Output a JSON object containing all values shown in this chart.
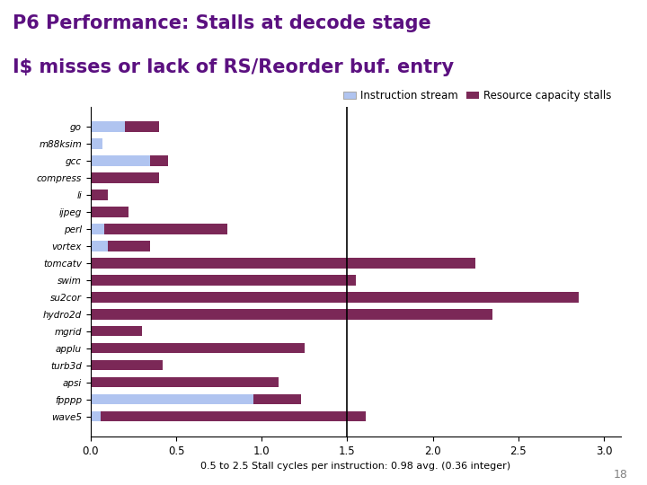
{
  "title_line1": "P6 Performance: Stalls at decode stage",
  "title_line2": "I$ misses or lack of RS/Reorder buf. entry",
  "categories": [
    "go",
    "m88ksim",
    "gcc",
    "compress",
    "li",
    "ijpeg",
    "perl",
    "vortex",
    "tomcatv",
    "swim",
    "su2cor",
    "hydro2d",
    "mgrid",
    "applu",
    "turb3d",
    "apsi",
    "fpppp",
    "wave5"
  ],
  "instruction_stream": [
    0.2,
    0.07,
    0.35,
    0.0,
    0.0,
    0.0,
    0.08,
    0.1,
    0.0,
    0.0,
    0.0,
    0.0,
    0.0,
    0.0,
    0.0,
    0.0,
    0.95,
    0.06
  ],
  "resource_capacity": [
    0.2,
    0.0,
    0.1,
    0.4,
    0.1,
    0.22,
    0.72,
    0.25,
    2.25,
    1.55,
    2.85,
    2.35,
    0.3,
    1.25,
    0.42,
    1.1,
    0.28,
    1.55
  ],
  "color_instruction": "#b0c4f0",
  "color_resource": "#7b2857",
  "xlabel": "0.5 to 2.5 Stall cycles per instruction: 0.98 avg. (0.36 integer)",
  "xlim": [
    0,
    3.1
  ],
  "vline_x": 1.5,
  "legend_labels": [
    "Instruction stream",
    "Resource capacity stalls"
  ],
  "page_num": "18",
  "title_color": "#5b1080",
  "title_fontsize": 15,
  "bar_height": 0.6
}
